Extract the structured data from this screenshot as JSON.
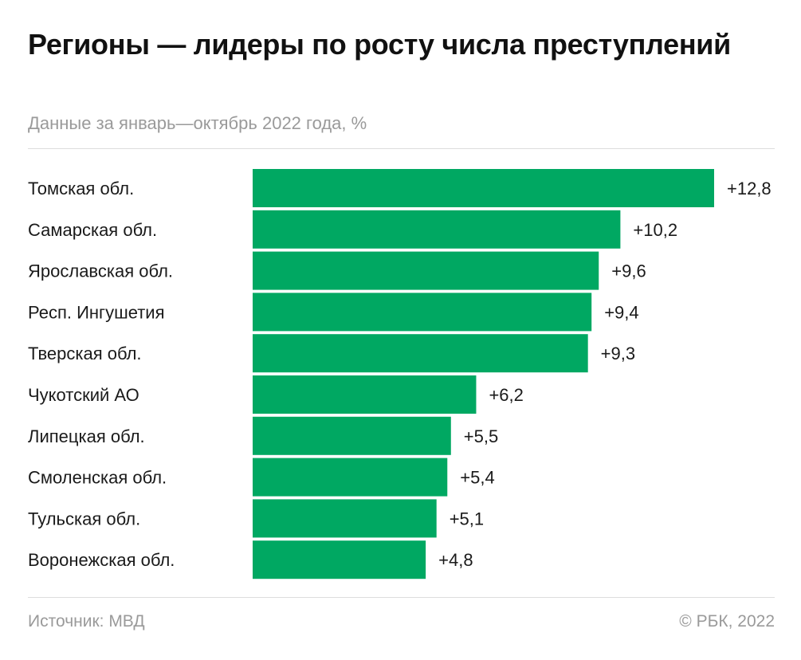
{
  "title": "Регионы — лидеры по росту числа преступлений",
  "subtitle": "Данные за январь—октябрь 2022 года, %",
  "source": "Источник: МВД",
  "copyright": "© РБК, 2022",
  "colors": {
    "bar": "#00a862",
    "label": "#1a1a1a",
    "value": "#1a1a1a"
  },
  "chart_data": {
    "type": "bar",
    "orientation": "horizontal",
    "categories": [
      "Томская обл.",
      "Самарская обл.",
      "Ярославская обл.",
      "Респ. Ингушетия",
      "Тверская обл.",
      "Чукотский АО",
      "Липецкая обл.",
      "Смоленская обл.",
      "Тульская обл.",
      "Воронежская обл."
    ],
    "values": [
      12.8,
      10.2,
      9.6,
      9.4,
      9.3,
      6.2,
      5.5,
      5.4,
      5.1,
      4.8
    ],
    "value_labels": [
      "+12,8",
      "+10,2",
      "+9,6",
      "+9,4",
      "+9,3",
      "+6,2",
      "+5,5",
      "+5,4",
      "+5,1",
      "+4,8"
    ],
    "xlim": [
      0,
      12.8
    ],
    "grid": false,
    "legend": "none"
  }
}
